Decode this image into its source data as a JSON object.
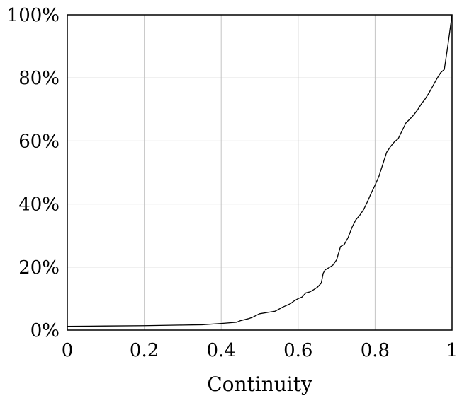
{
  "chart_data": {
    "type": "line",
    "title": "",
    "xlabel": "Continuity",
    "ylabel": "",
    "xlim": [
      0,
      1
    ],
    "ylim": [
      0,
      100
    ],
    "grid": true,
    "x_ticks": [
      {
        "value": 0,
        "label": "0"
      },
      {
        "value": 0.2,
        "label": "0.2"
      },
      {
        "value": 0.4,
        "label": "0.4"
      },
      {
        "value": 0.6,
        "label": "0.6"
      },
      {
        "value": 0.8,
        "label": "0.8"
      },
      {
        "value": 1,
        "label": "1"
      }
    ],
    "y_ticks": [
      {
        "value": 0,
        "label": "0%"
      },
      {
        "value": 20,
        "label": "20%"
      },
      {
        "value": 40,
        "label": "40%"
      },
      {
        "value": 60,
        "label": "60%"
      },
      {
        "value": 80,
        "label": "80%"
      },
      {
        "value": 100,
        "label": "100%"
      }
    ],
    "series": [
      {
        "color": "#000000",
        "points": [
          [
            0.0,
            1.2
          ],
          [
            0.1,
            1.3
          ],
          [
            0.2,
            1.4
          ],
          [
            0.3,
            1.6
          ],
          [
            0.35,
            1.7
          ],
          [
            0.4,
            2.1
          ],
          [
            0.44,
            2.5
          ],
          [
            0.45,
            3.0
          ],
          [
            0.47,
            3.6
          ],
          [
            0.48,
            4.0
          ],
          [
            0.5,
            5.2
          ],
          [
            0.52,
            5.6
          ],
          [
            0.54,
            6.0
          ],
          [
            0.56,
            7.3
          ],
          [
            0.58,
            8.4
          ],
          [
            0.59,
            9.3
          ],
          [
            0.6,
            10.0
          ],
          [
            0.61,
            10.5
          ],
          [
            0.62,
            11.8
          ],
          [
            0.63,
            12.1
          ],
          [
            0.64,
            12.8
          ],
          [
            0.65,
            13.6
          ],
          [
            0.66,
            14.9
          ],
          [
            0.665,
            18.0
          ],
          [
            0.67,
            19.1
          ],
          [
            0.68,
            19.8
          ],
          [
            0.69,
            20.6
          ],
          [
            0.7,
            22.3
          ],
          [
            0.71,
            26.5
          ],
          [
            0.72,
            27.2
          ],
          [
            0.73,
            29.4
          ],
          [
            0.74,
            32.6
          ],
          [
            0.75,
            35.0
          ],
          [
            0.76,
            36.4
          ],
          [
            0.77,
            38.2
          ],
          [
            0.78,
            40.7
          ],
          [
            0.79,
            43.5
          ],
          [
            0.8,
            46.0
          ],
          [
            0.81,
            48.8
          ],
          [
            0.82,
            52.6
          ],
          [
            0.83,
            56.4
          ],
          [
            0.84,
            58.2
          ],
          [
            0.85,
            59.7
          ],
          [
            0.86,
            60.7
          ],
          [
            0.87,
            63.2
          ],
          [
            0.88,
            65.7
          ],
          [
            0.89,
            66.9
          ],
          [
            0.9,
            68.2
          ],
          [
            0.91,
            69.8
          ],
          [
            0.92,
            71.7
          ],
          [
            0.93,
            73.3
          ],
          [
            0.94,
            75.2
          ],
          [
            0.95,
            77.4
          ],
          [
            0.96,
            79.6
          ],
          [
            0.97,
            81.6
          ],
          [
            0.98,
            82.7
          ],
          [
            0.99,
            91.0
          ],
          [
            1.0,
            100.0
          ]
        ]
      }
    ]
  }
}
